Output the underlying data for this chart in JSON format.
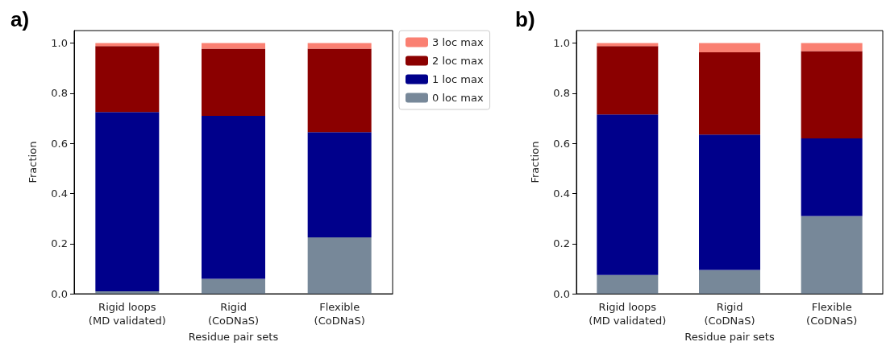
{
  "chart_data": [
    {
      "type": "bar",
      "title": "a)",
      "xlabel": "Residue pair sets",
      "ylabel": "Fraction",
      "stacked": true,
      "legend": "top right",
      "grid": false,
      "categories": [
        "Rigid loops\n(MD validated)",
        "Rigid\n(CoDNaS)",
        "Flexible\n(CoDNaS)"
      ],
      "ylim": [
        0,
        1.05
      ],
      "yticks": [
        {
          "value": 0,
          "label": "0.0"
        },
        {
          "value": 0.2,
          "label": "0.2"
        },
        {
          "value": 0.4,
          "label": "0.4"
        },
        {
          "value": 0.6,
          "label": "0.6"
        },
        {
          "value": 0.8,
          "label": "0.8"
        },
        {
          "value": 1,
          "label": "1.0"
        }
      ],
      "series": [
        {
          "name": "0 loc max",
          "color": "#778899",
          "values": [
            0.01,
            0.06,
            0.225
          ]
        },
        {
          "name": "1 loc max",
          "color": "#00008b",
          "values": [
            0.715,
            0.65,
            0.42
          ]
        },
        {
          "name": "2 loc max",
          "color": "#8b0000",
          "values": [
            0.263,
            0.268,
            0.333
          ]
        },
        {
          "name": "3 loc max",
          "color": "#fa8072",
          "values": [
            0.012,
            0.022,
            0.022
          ]
        }
      ]
    },
    {
      "type": "bar",
      "title": "b)",
      "xlabel": "Residue pair sets",
      "ylabel": "Fraction",
      "stacked": true,
      "grid": false,
      "categories": [
        "Rigid loops\n(MD validated)",
        "Rigid\n(CoDNaS)",
        "Flexible\n(CoDNaS)"
      ],
      "ylim": [
        0,
        1.05
      ],
      "yticks": [
        {
          "value": 0,
          "label": "0.0"
        },
        {
          "value": 0.2,
          "label": "0.2"
        },
        {
          "value": 0.4,
          "label": "0.4"
        },
        {
          "value": 0.6,
          "label": "0.6"
        },
        {
          "value": 0.8,
          "label": "0.8"
        },
        {
          "value": 1,
          "label": "1.0"
        }
      ],
      "series": [
        {
          "color": "#778899",
          "values": [
            0.075,
            0.095,
            0.31
          ]
        },
        {
          "color": "#00008b",
          "values": [
            0.64,
            0.54,
            0.31
          ]
        },
        {
          "color": "#8b0000",
          "values": [
            0.273,
            0.328,
            0.348
          ]
        },
        {
          "color": "#fa8072",
          "values": [
            0.012,
            0.037,
            0.032
          ]
        }
      ]
    }
  ]
}
